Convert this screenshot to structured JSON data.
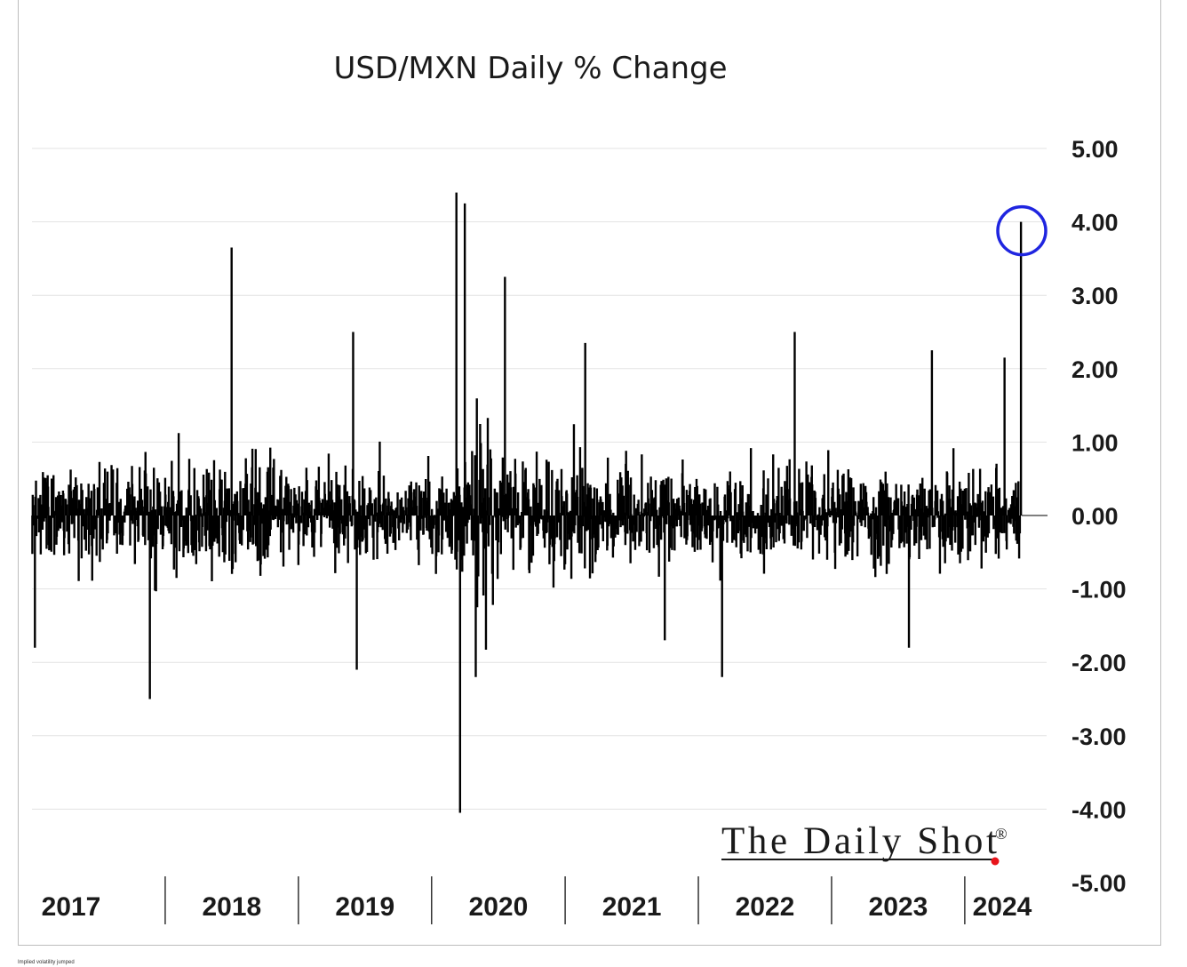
{
  "chart_data": {
    "type": "bar",
    "title": "USD/MXN Daily % Change",
    "xlabel": "",
    "ylabel": "",
    "x_range": [
      "2017-01-01",
      "2024-06-10"
    ],
    "ylim": [
      -5,
      5
    ],
    "y_ticks": [
      "5.00",
      "4.00",
      "3.00",
      "2.00",
      "1.00",
      "0.00",
      "-1.00",
      "-2.00",
      "-3.00",
      "-4.00",
      "-5.00"
    ],
    "year_labels": [
      "2017",
      "2018",
      "2019",
      "2020",
      "2021",
      "2022",
      "2023",
      "2024"
    ],
    "grid": true,
    "highlight": {
      "date": "2024-06-03",
      "value": 4.0,
      "color": "#1f25e0"
    },
    "bar_color": "#000000",
    "notable_values": [
      {
        "date": "2017-01-09",
        "value": -1.8
      },
      {
        "date": "2017-11-20",
        "value": -2.5
      },
      {
        "date": "2018-07-02",
        "value": 3.65
      },
      {
        "date": "2019-05-31",
        "value": 2.5
      },
      {
        "date": "2019-06-10",
        "value": -2.1
      },
      {
        "date": "2020-03-09",
        "value": 4.4
      },
      {
        "date": "2020-03-19",
        "value": -4.1
      },
      {
        "date": "2020-04-01",
        "value": 4.25
      },
      {
        "date": "2020-05-01",
        "value": -2.2
      },
      {
        "date": "2020-07-20",
        "value": 3.25
      },
      {
        "date": "2021-02-25",
        "value": 2.35
      },
      {
        "date": "2021-10-01",
        "value": -1.7
      },
      {
        "date": "2022-03-07",
        "value": -2.2
      },
      {
        "date": "2022-09-22",
        "value": 2.5
      },
      {
        "date": "2023-10-03",
        "value": 2.25
      },
      {
        "date": "2023-08-01",
        "value": -1.8
      },
      {
        "date": "2024-04-19",
        "value": 2.15
      },
      {
        "date": "2024-06-03",
        "value": 4.0
      }
    ]
  },
  "brand": {
    "name": "The Daily Shot",
    "mark": "®",
    "dot_color": "#e8141b"
  },
  "caption": "Implied volatility jumped"
}
